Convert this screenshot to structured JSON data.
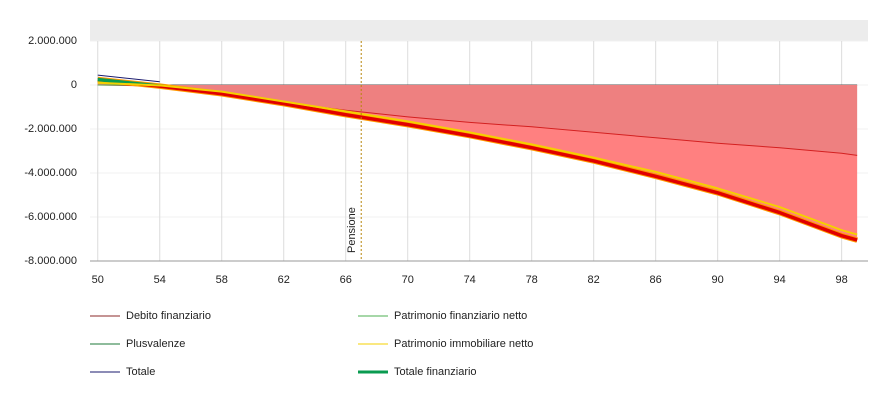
{
  "chart_data": {
    "type": "line",
    "x": [
      50,
      54,
      58,
      62,
      66,
      70,
      74,
      78,
      82,
      86,
      90,
      94,
      98,
      99
    ],
    "xlim": [
      49.5,
      99.7
    ],
    "xticks": [
      50,
      54,
      58,
      62,
      66,
      70,
      74,
      78,
      82,
      86,
      90,
      94,
      98
    ],
    "ylim": [
      -8000000,
      2000000
    ],
    "yticks": [
      {
        "value": -8000000,
        "label": "-8.000.000"
      },
      {
        "value": -6000000,
        "label": "-6.000.000"
      },
      {
        "value": -4000000,
        "label": "-4.000.000"
      },
      {
        "value": -2000000,
        "label": "-2.000.000"
      },
      0,
      {
        "value": 2000000,
        "label": "2.000.000"
      }
    ],
    "grid": true,
    "series": [
      {
        "name": "Debito finanziario",
        "color": "#8b2a2a",
        "line_color": "#d42020",
        "fill": "#ee8080",
        "values": [
          0,
          -50000,
          -400000,
          -800000,
          -1150000,
          -1450000,
          -1700000,
          -1900000,
          -2150000,
          -2400000,
          -2650000,
          -2850000,
          -3100000,
          -3200000
        ]
      },
      {
        "name": "Patrimonio finanziario netto",
        "color": "#4caf50",
        "values": [
          0,
          0,
          null,
          null,
          null,
          null,
          null,
          null,
          null,
          null,
          null,
          null,
          null,
          null
        ]
      },
      {
        "name": "Plusvalenze",
        "color": "#1e7a3a",
        "values": [
          300000,
          0,
          null,
          null,
          null,
          null,
          null,
          null,
          null,
          null,
          null,
          null,
          null,
          null
        ]
      },
      {
        "name": "Patrimonio immobiliare netto",
        "color": "#f5d000",
        "values": [
          100000,
          -20000,
          -300000,
          -750000,
          -1200000,
          -1650000,
          -2150000,
          -2700000,
          -3300000,
          -3950000,
          -4700000,
          -5550000,
          -6600000,
          -6800000
        ]
      },
      {
        "name": "Totale",
        "color": "#1a1a6e",
        "values": [
          450000,
          150000,
          null,
          null,
          null,
          null,
          null,
          null,
          null,
          null,
          null,
          null,
          null,
          null
        ]
      },
      {
        "name": "Totale finanziario",
        "color": "#0a9b50",
        "negative_color": "#e00000",
        "fill": "#ff8080",
        "fill_to": 0,
        "values": [
          250000,
          -50000,
          -400000,
          -850000,
          -1350000,
          -1800000,
          -2300000,
          -2850000,
          -3450000,
          -4150000,
          -4900000,
          -5800000,
          -6850000,
          -7050000
        ]
      }
    ],
    "annotations": [
      {
        "x": 67,
        "label": "Pensione",
        "color": "#b8860b"
      }
    ]
  }
}
